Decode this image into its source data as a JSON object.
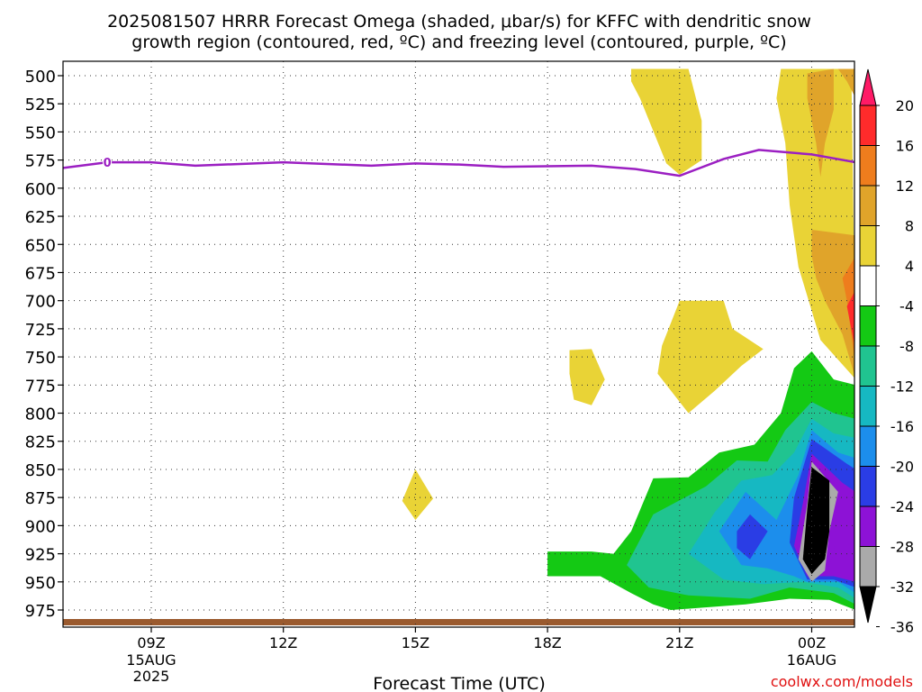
{
  "chart_data": {
    "type": "heatmap",
    "title_line1": "2025081507 HRRR Forecast Omega (shaded, μbar/s) for KFFC with dendritic snow",
    "title_line2": "growth region (contoured, red, ºC) and freezing level (contoured, purple, ºC)",
    "xlabel": "Forecast Time (UTC)",
    "credit": "coolwx.com/models",
    "y_axis": {
      "ticks": [
        500,
        525,
        550,
        575,
        600,
        625,
        650,
        675,
        700,
        725,
        750,
        775,
        800,
        825,
        850,
        875,
        900,
        925,
        950,
        975
      ],
      "inverted": true,
      "ylim": [
        494,
        1000
      ]
    },
    "x_axis": {
      "ticks": [
        {
          "h": 9,
          "label": "09Z",
          "date": "15AUG",
          "year": "2025"
        },
        {
          "h": 12,
          "label": "12Z",
          "date": "",
          "year": ""
        },
        {
          "h": 15,
          "label": "15Z",
          "date": "",
          "year": ""
        },
        {
          "h": 18,
          "label": "18Z",
          "date": "",
          "year": ""
        },
        {
          "h": 21,
          "label": "21Z",
          "date": "",
          "year": ""
        },
        {
          "h": 24,
          "label": "00Z",
          "date": "16AUG",
          "year": ""
        }
      ],
      "xlim": [
        7,
        25
      ]
    },
    "grid": true,
    "colorbar": {
      "levels": [
        20,
        16,
        12,
        8,
        4,
        -4,
        -8,
        -12,
        -16,
        -20,
        -24,
        -28,
        -32,
        -36
      ],
      "colors": [
        "#ff1a66",
        "#ff2b2b",
        "#ee7d1d",
        "#e0a42a",
        "#e9d336",
        "#ffffff",
        "#14c914",
        "#20c490",
        "#16b8c2",
        "#1c8eec",
        "#2a3de5",
        "#8d12d6",
        "#aaaaaa",
        "#000000"
      ]
    },
    "freezing_level": {
      "label": "0",
      "color": "#9b1fc2",
      "points": [
        [
          7,
          582
        ],
        [
          8,
          577
        ],
        [
          9,
          577
        ],
        [
          10,
          580
        ],
        [
          12,
          577
        ],
        [
          14,
          580
        ],
        [
          15,
          578
        ],
        [
          16,
          579
        ],
        [
          17,
          581
        ],
        [
          19,
          580
        ],
        [
          20,
          583
        ],
        [
          21,
          589
        ],
        [
          22,
          574
        ],
        [
          22.8,
          566
        ],
        [
          24,
          570
        ],
        [
          25,
          577
        ]
      ]
    },
    "omega_regions": [
      {
        "class": "plus4",
        "value": 4,
        "points": [
          [
            23.3,
            494
          ],
          [
            24.9,
            494
          ],
          [
            25,
            770
          ],
          [
            24.2,
            735
          ],
          [
            23.7,
            670
          ],
          [
            23.5,
            615
          ],
          [
            23.4,
            560
          ],
          [
            23.2,
            520
          ]
        ]
      },
      {
        "class": "plus8",
        "value": 8,
        "points": [
          [
            24.6,
            494
          ],
          [
            25,
            494
          ],
          [
            25,
            520
          ],
          [
            24.8,
            505
          ]
        ]
      },
      {
        "class": "plus8",
        "value": 8,
        "points": [
          [
            23.9,
            498
          ],
          [
            24.5,
            494
          ],
          [
            24.5,
            530
          ],
          [
            24.3,
            560
          ],
          [
            24.2,
            590
          ],
          [
            24.1,
            560
          ],
          [
            23.9,
            520
          ]
        ]
      },
      {
        "class": "plus4",
        "value": 4,
        "points": [
          [
            19.9,
            494
          ],
          [
            21.2,
            494
          ],
          [
            21.5,
            540
          ],
          [
            21.5,
            575
          ],
          [
            21.0,
            588
          ],
          [
            20.7,
            578
          ],
          [
            20.1,
            520
          ],
          [
            19.9,
            505
          ]
        ]
      },
      {
        "class": "plus8",
        "value": 8,
        "points": [
          [
            24.0,
            637
          ],
          [
            25,
            642
          ],
          [
            25,
            770
          ],
          [
            24.7,
            730
          ],
          [
            24.3,
            700
          ],
          [
            24.1,
            680
          ],
          [
            24.0,
            660
          ]
        ]
      },
      {
        "class": "plus12",
        "value": 12,
        "points": [
          [
            24.7,
            680
          ],
          [
            25,
            660
          ],
          [
            25,
            760
          ],
          [
            24.8,
            700
          ]
        ]
      },
      {
        "class": "plus16",
        "value": 16,
        "points": [
          [
            24.8,
            705
          ],
          [
            25,
            690
          ],
          [
            25,
            745
          ],
          [
            24.9,
            725
          ]
        ]
      },
      {
        "class": "plus4",
        "value": 4,
        "points": [
          [
            21.0,
            700
          ],
          [
            22.0,
            700
          ],
          [
            22.2,
            725
          ],
          [
            22.9,
            743
          ],
          [
            22.4,
            758
          ],
          [
            21.8,
            780
          ],
          [
            21.2,
            800
          ],
          [
            20.5,
            765
          ],
          [
            20.6,
            740
          ]
        ]
      },
      {
        "class": "plus4",
        "value": 4,
        "points": [
          [
            18.5,
            744
          ],
          [
            19.0,
            743
          ],
          [
            19.3,
            770
          ],
          [
            19.0,
            793
          ],
          [
            18.6,
            788
          ],
          [
            18.5,
            765
          ]
        ]
      },
      {
        "class": "plus4",
        "value": 4,
        "points": [
          [
            15.0,
            850
          ],
          [
            15.4,
            876
          ],
          [
            15.0,
            895
          ],
          [
            14.7,
            878
          ]
        ]
      },
      {
        "class": "minus4",
        "value": -4,
        "points": [
          [
            18.0,
            923
          ],
          [
            19.0,
            923
          ],
          [
            19.5,
            925
          ],
          [
            19.9,
            905
          ],
          [
            20.4,
            858
          ],
          [
            21.2,
            857
          ],
          [
            21.9,
            835
          ],
          [
            22.7,
            828
          ],
          [
            23.3,
            800
          ],
          [
            23.6,
            760
          ],
          [
            24.0,
            745
          ],
          [
            24.5,
            770
          ],
          [
            25,
            775
          ],
          [
            25,
            975
          ],
          [
            24.4,
            966
          ],
          [
            23.5,
            965
          ],
          [
            22.5,
            970
          ],
          [
            20.8,
            975
          ],
          [
            20.4,
            970
          ],
          [
            19.9,
            960
          ],
          [
            19.2,
            945
          ],
          [
            18.3,
            945
          ],
          [
            18.0,
            945
          ]
        ]
      },
      {
        "class": "minus8",
        "value": -8,
        "points": [
          [
            19.8,
            935
          ],
          [
            20.4,
            890
          ],
          [
            21.6,
            865
          ],
          [
            22.3,
            842
          ],
          [
            23.0,
            843
          ],
          [
            23.4,
            815
          ],
          [
            24.0,
            790
          ],
          [
            24.5,
            800
          ],
          [
            25,
            805
          ],
          [
            25,
            970
          ],
          [
            24.5,
            960
          ],
          [
            23.5,
            955
          ],
          [
            22.6,
            965
          ],
          [
            21.2,
            962
          ],
          [
            20.3,
            955
          ]
        ]
      },
      {
        "class": "minus12",
        "value": -12,
        "points": [
          [
            21.2,
            925
          ],
          [
            21.8,
            888
          ],
          [
            22.4,
            860
          ],
          [
            23.1,
            855
          ],
          [
            23.6,
            835
          ],
          [
            24.0,
            805
          ],
          [
            24.5,
            818
          ],
          [
            25,
            822
          ],
          [
            25,
            965
          ],
          [
            24.6,
            955
          ],
          [
            23.8,
            950
          ],
          [
            22.9,
            952
          ],
          [
            22.0,
            948
          ]
        ]
      },
      {
        "class": "minus16",
        "value": -16,
        "points": [
          [
            21.9,
            905
          ],
          [
            22.5,
            870
          ],
          [
            23.2,
            895
          ],
          [
            23.7,
            855
          ],
          [
            24.0,
            815
          ],
          [
            24.6,
            835
          ],
          [
            25,
            840
          ],
          [
            25,
            960
          ],
          [
            24.6,
            950
          ],
          [
            23.9,
            950
          ],
          [
            23.6,
            945
          ],
          [
            23.0,
            938
          ],
          [
            22.4,
            935
          ]
        ]
      },
      {
        "class": "minus20",
        "value": -20,
        "points": [
          [
            22.3,
            905
          ],
          [
            22.6,
            890
          ],
          [
            23.0,
            905
          ],
          [
            22.6,
            930
          ],
          [
            22.3,
            920
          ]
        ]
      },
      {
        "class": "minus20",
        "value": -20,
        "points": [
          [
            23.6,
            875
          ],
          [
            24.0,
            823
          ],
          [
            24.8,
            845
          ],
          [
            25,
            850
          ],
          [
            25,
            955
          ],
          [
            24.5,
            948
          ],
          [
            23.9,
            948
          ],
          [
            23.5,
            915
          ]
        ]
      },
      {
        "class": "minus24",
        "value": -24,
        "points": [
          [
            23.8,
            880
          ],
          [
            24.0,
            836
          ],
          [
            24.7,
            862
          ],
          [
            25,
            870
          ],
          [
            25,
            950
          ],
          [
            24.5,
            945
          ],
          [
            23.9,
            945
          ],
          [
            23.6,
            918
          ]
        ]
      },
      {
        "class": "minus28",
        "value": -28,
        "points": [
          [
            23.8,
            890
          ],
          [
            24.0,
            846
          ],
          [
            24.6,
            875
          ],
          [
            24.5,
            925
          ],
          [
            24.3,
            945
          ],
          [
            23.9,
            940
          ],
          [
            23.7,
            918
          ]
        ]
      },
      {
        "class": "minus32",
        "value": -32,
        "points": [
          [
            23.9,
            880
          ],
          [
            24.0,
            843
          ],
          [
            24.6,
            870
          ],
          [
            24.4,
            905
          ],
          [
            24.3,
            940
          ],
          [
            24.0,
            950
          ],
          [
            23.7,
            930
          ]
        ]
      },
      {
        "class": "minus36",
        "value": -36,
        "points": [
          [
            23.9,
            885
          ],
          [
            24.0,
            848
          ],
          [
            24.4,
            860
          ],
          [
            24.4,
            905
          ],
          [
            24.3,
            930
          ],
          [
            24.0,
            943
          ],
          [
            23.8,
            930
          ]
        ]
      }
    ]
  }
}
